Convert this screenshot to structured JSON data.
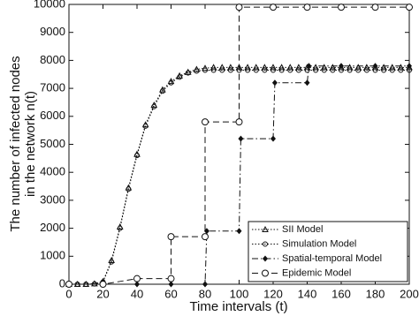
{
  "chart_data": {
    "type": "line",
    "x_label": "Time intervals (t)",
    "y_label": [
      "The number of infected nodes",
      "in the network n(t)"
    ],
    "xlim": [
      0,
      200
    ],
    "xticks": [
      0,
      20,
      40,
      60,
      80,
      100,
      120,
      140,
      160,
      180,
      200
    ],
    "ylim": [
      0,
      10000
    ],
    "yticks": [
      0,
      1000,
      2000,
      3000,
      4000,
      5000,
      6000,
      7000,
      8000,
      9000,
      10000
    ],
    "legend": "lower right",
    "series": [
      {
        "name": "SII Model",
        "color": "#111111",
        "line": "dotted",
        "marker": "triangle",
        "x": [
          0,
          5,
          10,
          15,
          20,
          25,
          30,
          35,
          40,
          45,
          50,
          55,
          60,
          65,
          70,
          75,
          80,
          85,
          90,
          95,
          100,
          105,
          110,
          115,
          120,
          125,
          130,
          135,
          140,
          145,
          150,
          155,
          160,
          165,
          170,
          175,
          180,
          185,
          190,
          195,
          200
        ],
        "values": [
          0,
          0,
          0,
          20,
          100,
          850,
          2050,
          3450,
          4650,
          5700,
          6400,
          6950,
          7250,
          7450,
          7580,
          7680,
          7720,
          7750,
          7750,
          7750,
          7750,
          7750,
          7750,
          7750,
          7750,
          7750,
          7750,
          7750,
          7750,
          7750,
          7750,
          7750,
          7750,
          7750,
          7750,
          7750,
          7750,
          7750,
          7750,
          7750,
          7750
        ]
      },
      {
        "name": "Simulation Model",
        "color": "#111111",
        "line": "dotted",
        "marker": "circle",
        "x": [
          0,
          5,
          10,
          15,
          20,
          25,
          30,
          35,
          40,
          45,
          50,
          55,
          60,
          65,
          70,
          75,
          80,
          85,
          90,
          95,
          100,
          105,
          110,
          115,
          120,
          125,
          130,
          135,
          140,
          145,
          150,
          155,
          160,
          165,
          170,
          175,
          180,
          185,
          190,
          195,
          200
        ],
        "values": [
          0,
          0,
          0,
          10,
          80,
          800,
          2000,
          3400,
          4600,
          5650,
          6350,
          6900,
          7200,
          7400,
          7550,
          7620,
          7650,
          7650,
          7650,
          7650,
          7650,
          7650,
          7650,
          7650,
          7650,
          7650,
          7650,
          7650,
          7650,
          7650,
          7650,
          7650,
          7650,
          7650,
          7650,
          7650,
          7650,
          7650,
          7650,
          7650,
          7650
        ]
      },
      {
        "name": "Spatial-temporal Model",
        "color": "#111111",
        "line": "dashdot",
        "marker": "diamond",
        "x": [
          0,
          20,
          40,
          60,
          80,
          81,
          100,
          101,
          120,
          121,
          140,
          141,
          160,
          180,
          200
        ],
        "values": [
          0,
          0,
          0,
          0,
          0,
          1900,
          1900,
          5200,
          5200,
          7200,
          7200,
          7800,
          7800,
          7800,
          7800
        ]
      },
      {
        "name": "Epidemic Model",
        "color": "#111111",
        "line": "dashed",
        "marker": "open-circle",
        "x": [
          0,
          20,
          40,
          60,
          60,
          80,
          80,
          100,
          100,
          120,
          140,
          160,
          180,
          200
        ],
        "values": [
          0,
          0,
          200,
          200,
          1700,
          1700,
          5800,
          5800,
          9900,
          9900,
          9900,
          9900,
          9900,
          9900
        ]
      }
    ]
  }
}
